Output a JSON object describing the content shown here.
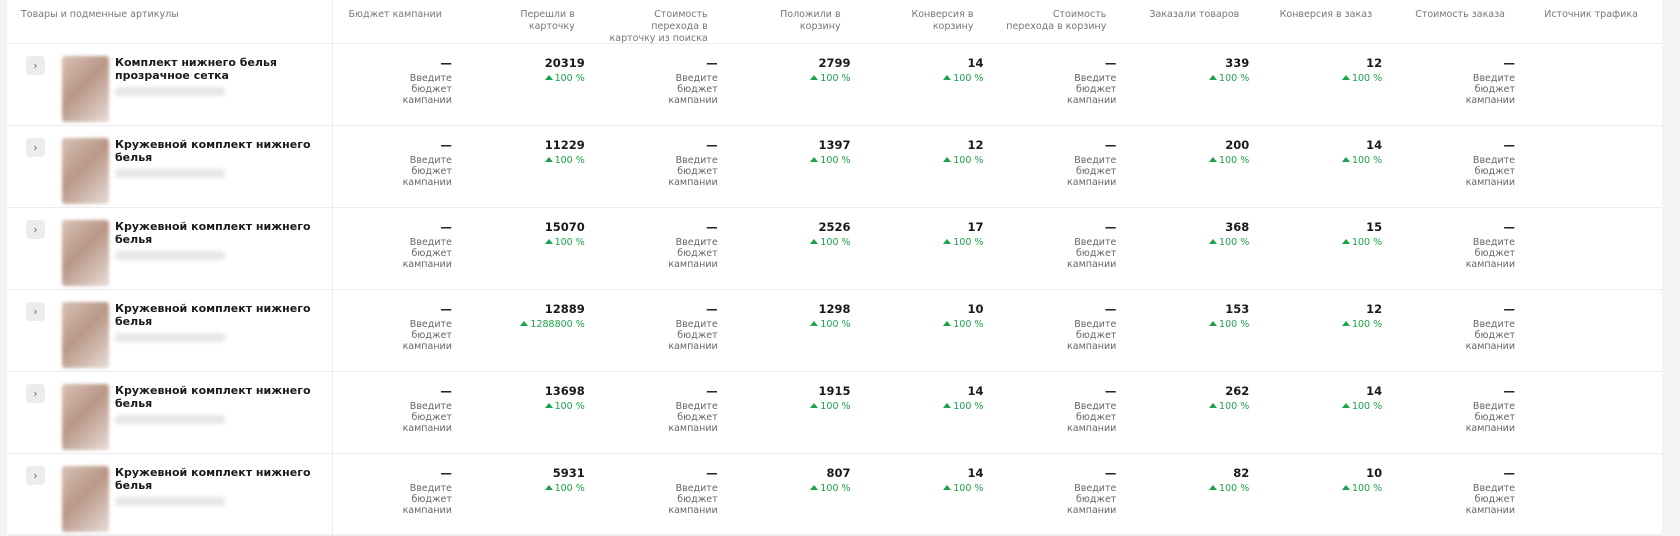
{
  "table": {
    "headers": [
      "Товары и подменные артикулы",
      "Бюджет кампании",
      "Перешли в карточку",
      "Стоимость перехода в карточку из поиска",
      "Положили в корзину",
      "Конверсия в корзину",
      "Стоимость перехода в корзину",
      "Заказали товаров",
      "Конверсия в заказ",
      "Стоимость заказа",
      "Источник трафика"
    ],
    "rows": [
      {
        "name": "Комплект нижнего белья прозрачное сетка",
        "cells": [
          {
            "value": "—",
            "note": "Введите бюджет кампании"
          },
          {
            "value": 20319,
            "change": "100 %"
          },
          {
            "value": "—",
            "note": "Введите бюджет кампании"
          },
          {
            "value": 2799,
            "change": "100 %"
          },
          {
            "value": 14,
            "change": "100 %"
          },
          {
            "value": "—",
            "note": "Введите бюджет кампании"
          },
          {
            "value": 339,
            "change": "100 %"
          },
          {
            "value": 12,
            "change": "100 %"
          },
          {
            "value": "—",
            "note": "Введите бюджет кампании"
          }
        ]
      },
      {
        "name": "Кружевной комплект нижнего белья",
        "cells": [
          {
            "value": "—",
            "note": "Введите бюджет кампании"
          },
          {
            "value": 11229,
            "change": "100 %"
          },
          {
            "value": "—",
            "note": "Введите бюджет кампании"
          },
          {
            "value": 1397,
            "change": "100 %"
          },
          {
            "value": 12,
            "change": "100 %"
          },
          {
            "value": "—",
            "note": "Введите бюджет кампании"
          },
          {
            "value": 200,
            "change": "100 %"
          },
          {
            "value": 14,
            "change": "100 %"
          },
          {
            "value": "—",
            "note": "Введите бюджет кампании"
          }
        ]
      },
      {
        "name": "Кружевной комплект нижнего белья",
        "cells": [
          {
            "value": "—",
            "note": "Введите бюджет кампании"
          },
          {
            "value": 15070,
            "change": "100 %"
          },
          {
            "value": "—",
            "note": "Введите бюджет кампании"
          },
          {
            "value": 2526,
            "change": "100 %"
          },
          {
            "value": 17,
            "change": "100 %"
          },
          {
            "value": "—",
            "note": "Введите бюджет кампании"
          },
          {
            "value": 368,
            "change": "100 %"
          },
          {
            "value": 15,
            "change": "100 %"
          },
          {
            "value": "—",
            "note": "Введите бюджет кампании"
          }
        ]
      },
      {
        "name": "Кружевной комплект нижнего белья",
        "cells": [
          {
            "value": "—",
            "note": "Введите бюджет кампании"
          },
          {
            "value": 12889,
            "change": "1288800 %"
          },
          {
            "value": "—",
            "note": "Введите бюджет кампании"
          },
          {
            "value": 1298,
            "change": "100 %"
          },
          {
            "value": 10,
            "change": "100 %"
          },
          {
            "value": "—",
            "note": "Введите бюджет кампании"
          },
          {
            "value": 153,
            "change": "100 %"
          },
          {
            "value": 12,
            "change": "100 %"
          },
          {
            "value": "—",
            "note": "Введите бюджет кампании"
          }
        ]
      },
      {
        "name": "Кружевной комплект нижнего белья",
        "cells": [
          {
            "value": "—",
            "note": "Введите бюджет кампании"
          },
          {
            "value": 13698,
            "change": "100 %"
          },
          {
            "value": "—",
            "note": "Введите бюджет кампании"
          },
          {
            "value": 1915,
            "change": "100 %"
          },
          {
            "value": 14,
            "change": "100 %"
          },
          {
            "value": "—",
            "note": "Введите бюджет кампании"
          },
          {
            "value": 262,
            "change": "100 %"
          },
          {
            "value": 14,
            "change": "100 %"
          },
          {
            "value": "—",
            "note": "Введите бюджет кампании"
          }
        ]
      },
      {
        "name": "Кружевной комплект нижнего белья",
        "cells": [
          {
            "value": "—",
            "note": "Введите бюджет кампании"
          },
          {
            "value": 5931,
            "change": "100 %"
          },
          {
            "value": "—",
            "note": "Введите бюджет кампании"
          },
          {
            "value": 807,
            "change": "100 %"
          },
          {
            "value": 14,
            "change": "100 %"
          },
          {
            "value": "—",
            "note": "Введите бюджет кампании"
          },
          {
            "value": 82,
            "change": "100 %"
          },
          {
            "value": 10,
            "change": "100 %"
          },
          {
            "value": "—",
            "note": "Введите бюджет кампании"
          }
        ]
      }
    ]
  }
}
